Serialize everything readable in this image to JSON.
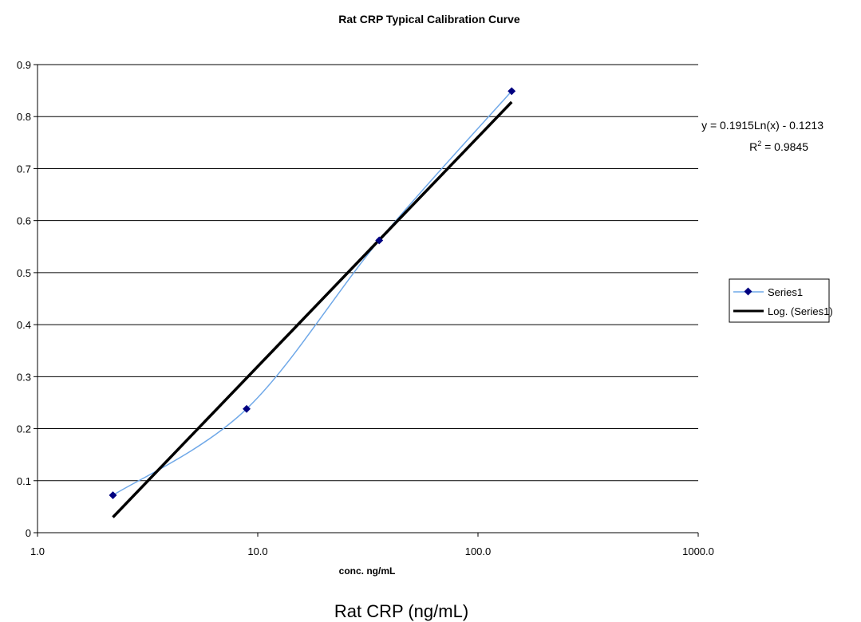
{
  "chart_data": {
    "type": "scatter",
    "title": "Rat CRP Typical Calibration Curve",
    "xlabel": "conc. ng/mL",
    "ylabel": "",
    "x_scale": "log",
    "xlim": [
      1.0,
      1000.0
    ],
    "ylim": [
      0,
      0.9
    ],
    "x_ticks": [
      "1.0",
      "10.0",
      "100.0",
      "1000.0"
    ],
    "y_ticks": [
      "0",
      "0.1",
      "0.2",
      "0.3",
      "0.4",
      "0.5",
      "0.6",
      "0.7",
      "0.8",
      "0.9"
    ],
    "grid": "horizontal",
    "series": [
      {
        "name": "Series1",
        "x": [
          2.2,
          8.9,
          35.6,
          142.2
        ],
        "y": [
          0.072,
          0.238,
          0.562,
          0.849
        ],
        "color": "#6fa8e8",
        "marker_color": "#000080",
        "smoothed": true
      }
    ],
    "trendline": {
      "name": "Log. (Series1)",
      "type": "logarithmic",
      "coef_a": 0.1915,
      "coef_b": -0.1213,
      "color": "#000000",
      "equation": "y = 0.1915Ln(x) - 0.1213",
      "r2_prefix": "R",
      "r2_superscript": "2",
      "r2_suffix": " = 0.9845"
    },
    "legend_position": "right",
    "caption": "Rat CRP (ng/mL)"
  }
}
